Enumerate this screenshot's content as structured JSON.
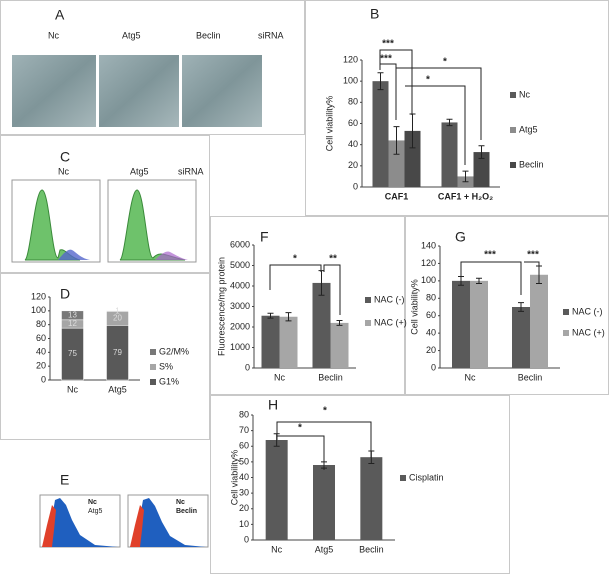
{
  "panels": {
    "A": {
      "label": "A",
      "texts": [
        "Nc",
        "Atg5",
        "Beclin",
        "siRNA"
      ]
    },
    "C": {
      "label": "C",
      "texts": [
        "Nc",
        "Atg5",
        "siRNA"
      ]
    },
    "E": {
      "label": "E",
      "legends": [
        [
          "Nc",
          "Atg5"
        ],
        [
          "Nc",
          "Beclin"
        ]
      ]
    }
  },
  "chart_data": [
    {
      "label": "B",
      "type": "bar",
      "y_label": "Cell viability%",
      "categories": [
        "CAF1",
        "CAF1 + H₂O₂"
      ],
      "ylim": [
        0,
        120
      ],
      "yticks": [
        0,
        20,
        40,
        60,
        80,
        100,
        120
      ],
      "series": [
        {
          "name": "Nc",
          "color": "#5a5a5a",
          "values": [
            100,
            61
          ],
          "errors": [
            8,
            3
          ]
        },
        {
          "name": "Atg5",
          "color": "#8c8c8c",
          "values": [
            44,
            10
          ],
          "errors": [
            13,
            5
          ]
        },
        {
          "name": "Beclin",
          "color": "#484848",
          "values": [
            53,
            33
          ],
          "errors": [
            16,
            6
          ]
        }
      ],
      "annotations": [
        "***",
        "***",
        "*",
        "*"
      ]
    },
    {
      "label": "D",
      "type": "stacked_bar",
      "categories": [
        "Nc",
        "Atg5"
      ],
      "ylim": [
        0,
        120
      ],
      "yticks": [
        0,
        20,
        40,
        60,
        80,
        100,
        120
      ],
      "series": [
        {
          "name": "G1%",
          "color": "#595959",
          "values": [
            75,
            79
          ]
        },
        {
          "name": "S%",
          "color": "#a6a6a6",
          "values": [
            12,
            20
          ]
        },
        {
          "name": "G2/M%",
          "color": "#787878",
          "values": [
            13,
            1
          ]
        }
      ]
    },
    {
      "label": "F",
      "type": "bar",
      "y_label": "Fluorescence/mg protein",
      "categories": [
        "Nc",
        "Beclin"
      ],
      "ylim": [
        0,
        6000
      ],
      "yticks": [
        0,
        1000,
        2000,
        3000,
        4000,
        5000,
        6000
      ],
      "series": [
        {
          "name": "NAC (-)",
          "color": "#5a5a5a",
          "values": [
            2550,
            4150
          ],
          "errors": [
            120,
            600
          ]
        },
        {
          "name": "NAC (+)",
          "color": "#a6a6a6",
          "values": [
            2500,
            2200
          ],
          "errors": [
            200,
            120
          ]
        }
      ],
      "annotations": [
        "*",
        "**"
      ]
    },
    {
      "label": "G",
      "type": "bar",
      "y_label": "Cell viability%",
      "categories": [
        "Nc",
        "Beclin"
      ],
      "ylim": [
        0,
        140
      ],
      "yticks": [
        0,
        20,
        40,
        60,
        80,
        100,
        120,
        140
      ],
      "series": [
        {
          "name": "NAC (-)",
          "color": "#5a5a5a",
          "values": [
            100,
            70
          ],
          "errors": [
            5,
            5
          ]
        },
        {
          "name": "NAC (+)",
          "color": "#a6a6a6",
          "values": [
            100,
            107
          ],
          "errors": [
            3,
            10
          ]
        }
      ],
      "annotations": [
        "***",
        "***"
      ]
    },
    {
      "label": "H",
      "type": "bar",
      "y_label": "Cell viability%",
      "categories": [
        "Nc",
        "Atg5",
        "Beclin"
      ],
      "ylim": [
        0,
        80
      ],
      "yticks": [
        0,
        10,
        20,
        30,
        40,
        50,
        60,
        70,
        80
      ],
      "series": [
        {
          "name": "Cisplatin",
          "color": "#5a5a5a",
          "values": [
            64,
            48,
            53
          ],
          "errors": [
            4,
            2,
            4
          ]
        }
      ],
      "annotations": [
        "*",
        "*"
      ]
    }
  ]
}
